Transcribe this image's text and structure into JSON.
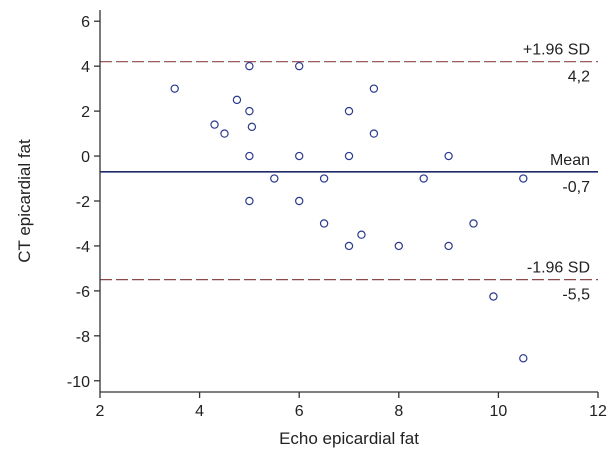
{
  "chart_data": {
    "type": "scatter",
    "xlabel": "Echo epicardial fat",
    "ylabel": "CT epicardial fat",
    "xlim": [
      2,
      12
    ],
    "ylim": [
      -10.5,
      6.5
    ],
    "x_ticks": [
      2,
      4,
      6,
      8,
      10,
      12
    ],
    "y_ticks": [
      6,
      4,
      2,
      0,
      -2,
      -4,
      -6,
      -8,
      -10
    ],
    "grid": false,
    "reference_lines": [
      {
        "name": "+1.96 SD",
        "value": 4.2,
        "value_label": "4,2",
        "style": "dashed",
        "color": "#8c4a4a"
      },
      {
        "name": "Mean",
        "value": -0.7,
        "value_label": "-0,7",
        "style": "solid",
        "color": "#1f2a6b"
      },
      {
        "name": "-1.96 SD",
        "value": -5.5,
        "value_label": "-5,5",
        "style": "dashed",
        "color": "#8c4a4a"
      }
    ],
    "points": [
      {
        "x": 3.5,
        "y": 3
      },
      {
        "x": 4.3,
        "y": 1.4
      },
      {
        "x": 4.5,
        "y": 1
      },
      {
        "x": 4.75,
        "y": 2.5
      },
      {
        "x": 5,
        "y": 4
      },
      {
        "x": 5,
        "y": 2
      },
      {
        "x": 5.05,
        "y": 1.3
      },
      {
        "x": 5,
        "y": 0
      },
      {
        "x": 5,
        "y": -2
      },
      {
        "x": 5.5,
        "y": -1
      },
      {
        "x": 6,
        "y": 4
      },
      {
        "x": 6,
        "y": 0
      },
      {
        "x": 6,
        "y": -2
      },
      {
        "x": 6.5,
        "y": -1
      },
      {
        "x": 6.5,
        "y": -3
      },
      {
        "x": 7,
        "y": 2
      },
      {
        "x": 7,
        "y": 0
      },
      {
        "x": 7,
        "y": -4
      },
      {
        "x": 7.25,
        "y": -3.5
      },
      {
        "x": 7.5,
        "y": 3
      },
      {
        "x": 7.5,
        "y": 1
      },
      {
        "x": 8,
        "y": -4
      },
      {
        "x": 8.5,
        "y": -1
      },
      {
        "x": 9,
        "y": 0
      },
      {
        "x": 9,
        "y": -4
      },
      {
        "x": 9.5,
        "y": -3
      },
      {
        "x": 9.9,
        "y": -6.25
      },
      {
        "x": 10.5,
        "y": -1
      },
      {
        "x": 10.5,
        "y": -9
      }
    ]
  }
}
